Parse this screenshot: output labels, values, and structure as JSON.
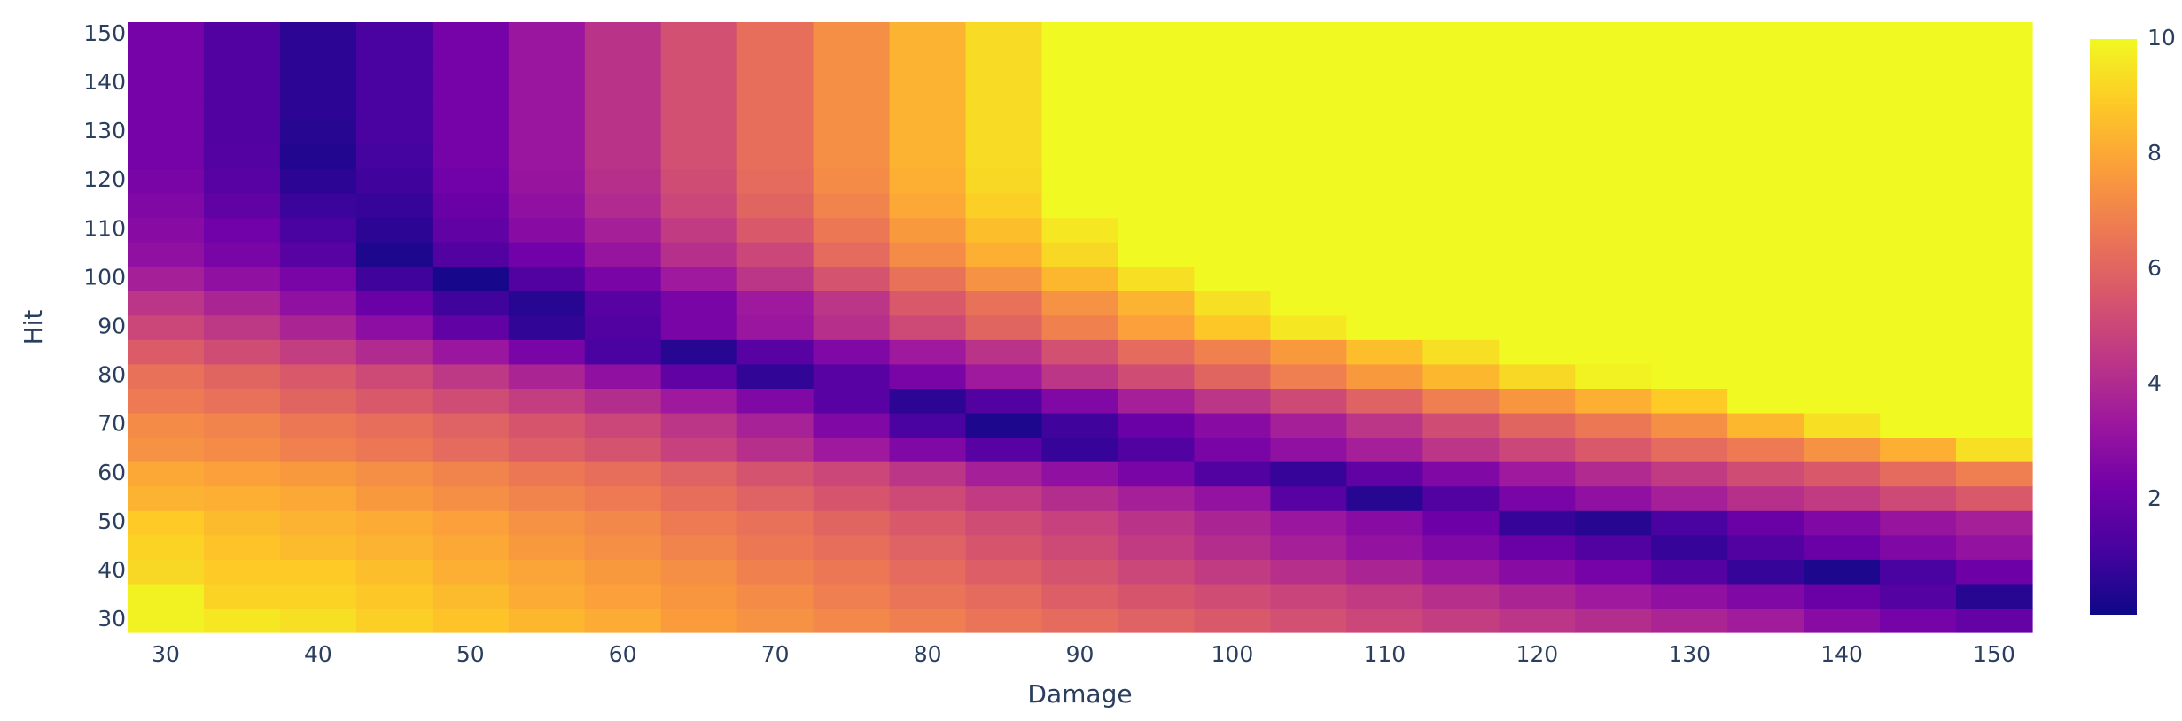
{
  "chart_data": {
    "type": "heatmap",
    "title": "",
    "xlabel": "Damage",
    "ylabel": "Hit",
    "x_start": 30,
    "x_step": 5,
    "x_count": 25,
    "y_start": 30,
    "y_step": 5,
    "y_count": 25,
    "xlim": [
      27.5,
      152.5
    ],
    "ylim": [
      27.5,
      152.5
    ],
    "x_tick_labels": [
      "30",
      "40",
      "50",
      "60",
      "70",
      "80",
      "90",
      "100",
      "110",
      "120",
      "130",
      "140",
      "150"
    ],
    "y_tick_labels": [
      "30",
      "40",
      "50",
      "60",
      "70",
      "80",
      "90",
      "100",
      "110",
      "120",
      "130",
      "140",
      "150"
    ],
    "z_range": [
      0,
      10
    ],
    "colorbar_tick_labels": [
      "2",
      "4",
      "6",
      "8",
      "10"
    ],
    "colorscale": [
      "#0d0887",
      "#46039f",
      "#7201a8",
      "#9c179e",
      "#bd3786",
      "#d8576b",
      "#ed7953",
      "#fb9f3a",
      "#fdca26",
      "#f0f921"
    ],
    "grid": false,
    "colorbar_placement": "right",
    "z": [
      [
        9.8,
        9.6,
        9.4,
        9.0,
        8.7,
        8.4,
        8.1,
        7.7,
        7.4,
        7.1,
        6.8,
        6.5,
        6.2,
        5.9,
        5.6,
        5.3,
        5.0,
        4.7,
        4.4,
        4.1,
        3.8,
        3.5,
        2.8,
        2.3,
        1.9
      ],
      [
        9.8,
        9.1,
        9.1,
        8.8,
        8.5,
        8.1,
        7.8,
        7.5,
        7.2,
        6.8,
        6.5,
        6.2,
        5.8,
        5.5,
        5.2,
        4.9,
        4.6,
        4.2,
        3.8,
        3.4,
        3.0,
        2.6,
        2.0,
        1.5,
        0.5
      ],
      [
        9.2,
        8.9,
        8.9,
        8.6,
        8.2,
        7.9,
        7.6,
        7.3,
        6.9,
        6.6,
        6.2,
        5.8,
        5.4,
        5.0,
        4.6,
        4.2,
        3.8,
        3.3,
        2.8,
        2.3,
        1.5,
        0.8,
        0.3,
        1.2,
        2.1
      ],
      [
        9.1,
        8.7,
        8.5,
        8.3,
        8.0,
        7.6,
        7.3,
        7.0,
        6.6,
        6.3,
        5.9,
        5.5,
        5.1,
        4.6,
        4.1,
        3.6,
        3.1,
        2.6,
        2.0,
        1.4,
        0.8,
        1.4,
        2.0,
        2.6,
        3.1
      ],
      [
        8.9,
        8.5,
        8.3,
        8.1,
        7.8,
        7.4,
        7.1,
        6.7,
        6.4,
        6.0,
        5.6,
        5.2,
        4.8,
        4.3,
        3.8,
        3.3,
        2.8,
        2.1,
        0.8,
        0.5,
        1.2,
        2.0,
        2.6,
        3.2,
        3.6
      ],
      [
        8.3,
        8.2,
        8.0,
        7.6,
        7.3,
        7.0,
        6.7,
        6.3,
        5.9,
        5.5,
        5.1,
        4.6,
        4.1,
        3.6,
        3.1,
        1.6,
        0.5,
        1.4,
        2.4,
        3.0,
        3.6,
        4.2,
        4.6,
        5.1,
        5.6
      ],
      [
        8.0,
        7.8,
        7.6,
        7.3,
        7.0,
        6.6,
        6.3,
        5.9,
        5.4,
        5.0,
        4.4,
        3.6,
        3.0,
        2.4,
        1.4,
        0.8,
        1.8,
        2.6,
        3.4,
        4.0,
        4.6,
        5.2,
        5.6,
        6.2,
        6.8
      ],
      [
        7.4,
        7.2,
        6.9,
        6.6,
        6.2,
        5.8,
        5.4,
        4.8,
        4.2,
        3.4,
        2.6,
        1.6,
        0.8,
        1.4,
        2.4,
        3.0,
        3.6,
        4.4,
        5.0,
        5.6,
        6.2,
        6.7,
        7.4,
        8.2,
        9.4
      ],
      [
        7.2,
        7.0,
        6.6,
        6.3,
        5.9,
        5.5,
        5.0,
        4.4,
        3.7,
        2.6,
        1.2,
        0.3,
        1.0,
        2.0,
        2.8,
        3.6,
        4.4,
        5.2,
        6.0,
        6.6,
        7.3,
        8.4,
        9.4,
        10,
        10
      ],
      [
        6.7,
        6.4,
        6.0,
        5.6,
        5.2,
        4.7,
        4.1,
        3.4,
        2.6,
        1.6,
        0.6,
        1.4,
        2.6,
        3.6,
        4.4,
        5.1,
        5.9,
        6.8,
        7.5,
        8.2,
        8.9,
        10,
        10,
        10,
        10
      ],
      [
        6.4,
        6.0,
        5.6,
        5.1,
        4.5,
        3.8,
        3.0,
        1.8,
        0.7,
        1.6,
        2.4,
        3.4,
        4.4,
        5.2,
        6.0,
        6.8,
        7.6,
        8.4,
        9.2,
        9.8,
        10,
        10,
        10,
        10,
        10
      ],
      [
        5.7,
        5.2,
        4.7,
        4.0,
        3.3,
        2.4,
        1.2,
        0.5,
        1.6,
        2.6,
        3.4,
        4.3,
        5.3,
        6.2,
        6.9,
        7.6,
        8.6,
        9.4,
        10,
        10,
        10,
        10,
        10,
        10,
        10
      ],
      [
        5.0,
        4.5,
        3.8,
        2.9,
        1.8,
        0.7,
        1.4,
        2.4,
        3.3,
        4.2,
        5.1,
        6.0,
        6.9,
        7.8,
        8.8,
        9.6,
        10,
        10,
        10,
        10,
        10,
        10,
        10,
        10,
        10
      ],
      [
        4.4,
        3.8,
        3.0,
        2.0,
        1.0,
        0.5,
        1.6,
        2.4,
        3.4,
        4.4,
        5.6,
        6.4,
        7.4,
        8.3,
        9.4,
        10,
        10,
        10,
        10,
        10,
        10,
        10,
        10,
        10,
        10
      ],
      [
        3.6,
        3.0,
        2.4,
        1.0,
        0.2,
        1.4,
        2.4,
        3.4,
        4.4,
        5.4,
        6.4,
        7.4,
        8.4,
        9.4,
        10,
        10,
        10,
        10,
        10,
        10,
        10,
        10,
        10,
        10,
        10
      ],
      [
        3.0,
        2.4,
        1.6,
        0.3,
        1.4,
        2.2,
        3.2,
        4.2,
        5.0,
        6.2,
        7.2,
        8.2,
        9.2,
        10,
        10,
        10,
        10,
        10,
        10,
        10,
        10,
        10,
        10,
        10,
        10
      ],
      [
        2.8,
        2.2,
        1.2,
        0.6,
        1.8,
        2.8,
        3.6,
        4.6,
        5.6,
        6.6,
        7.6,
        8.6,
        9.6,
        10,
        10,
        10,
        10,
        10,
        10,
        10,
        10,
        10,
        10,
        10,
        10
      ],
      [
        2.6,
        1.8,
        0.9,
        0.8,
        2.0,
        3.0,
        4.0,
        5.0,
        6.0,
        7.0,
        8.0,
        9.0,
        10,
        10,
        10,
        10,
        10,
        10,
        10,
        10,
        10,
        10,
        10,
        10,
        10
      ],
      [
        2.4,
        1.6,
        0.6,
        1.0,
        2.2,
        3.2,
        4.2,
        5.2,
        6.2,
        7.2,
        8.2,
        9.2,
        10,
        10,
        10,
        10,
        10,
        10,
        10,
        10,
        10,
        10,
        10,
        10,
        10
      ],
      [
        2.3,
        1.5,
        0.4,
        1.1,
        2.3,
        3.3,
        4.3,
        5.3,
        6.3,
        7.3,
        8.3,
        9.3,
        10,
        10,
        10,
        10,
        10,
        10,
        10,
        10,
        10,
        10,
        10,
        10,
        10
      ],
      [
        2.3,
        1.4,
        0.5,
        1.2,
        2.3,
        3.3,
        4.3,
        5.3,
        6.3,
        7.3,
        8.3,
        9.3,
        10,
        10,
        10,
        10,
        10,
        10,
        10,
        10,
        10,
        10,
        10,
        10,
        10
      ],
      [
        2.3,
        1.4,
        0.6,
        1.2,
        2.3,
        3.3,
        4.3,
        5.3,
        6.3,
        7.3,
        8.3,
        9.3,
        10,
        10,
        10,
        10,
        10,
        10,
        10,
        10,
        10,
        10,
        10,
        10,
        10
      ],
      [
        2.3,
        1.4,
        0.6,
        1.2,
        2.3,
        3.3,
        4.3,
        5.3,
        6.3,
        7.3,
        8.3,
        9.3,
        10,
        10,
        10,
        10,
        10,
        10,
        10,
        10,
        10,
        10,
        10,
        10,
        10
      ],
      [
        2.3,
        1.4,
        0.6,
        1.2,
        2.3,
        3.3,
        4.3,
        5.3,
        6.3,
        7.3,
        8.3,
        9.3,
        10,
        10,
        10,
        10,
        10,
        10,
        10,
        10,
        10,
        10,
        10,
        10,
        10
      ],
      [
        2.3,
        1.4,
        0.6,
        1.2,
        2.3,
        3.3,
        4.3,
        5.3,
        6.3,
        7.3,
        8.3,
        9.3,
        10,
        10,
        10,
        10,
        10,
        10,
        10,
        10,
        10,
        10,
        10,
        10,
        10
      ]
    ]
  }
}
